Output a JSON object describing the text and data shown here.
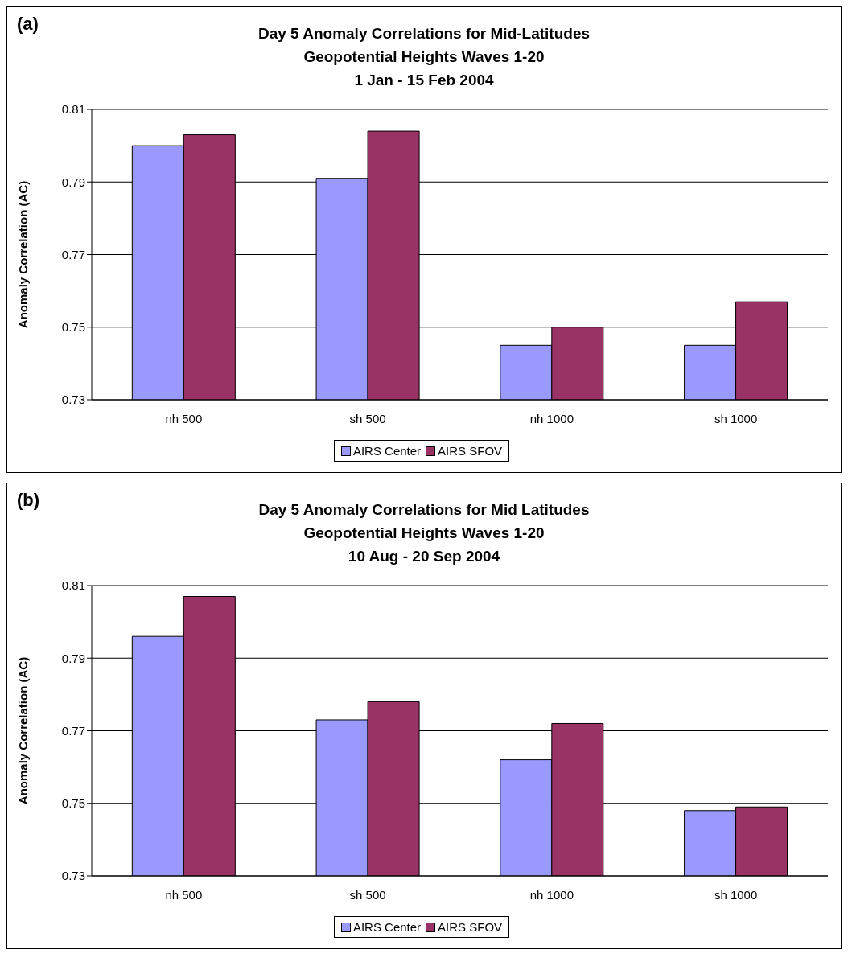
{
  "chart_data": [
    {
      "type": "bar",
      "title": "Day 5 Anomaly Correlations for Mid-Latitudes\nGeopotential Heights Waves 1-20\n1 Jan - 15 Feb 2004",
      "annotations": [
        "(a)"
      ],
      "ylabel": "Anomaly Correlation (AC)",
      "categories": [
        "nh 500",
        "sh 500",
        "nh 1000",
        "sh 1000"
      ],
      "series": [
        {
          "name": "AIRS Center",
          "color": "#9999ff",
          "values": [
            0.8,
            0.791,
            0.745,
            0.745
          ]
        },
        {
          "name": "AIRS SFOV",
          "color": "#993366",
          "values": [
            0.803,
            0.804,
            0.75,
            0.757
          ]
        }
      ],
      "ylim": [
        0.73,
        0.81
      ],
      "yticks": [
        0.73,
        0.75,
        0.77,
        0.79,
        0.81
      ],
      "grid": "y",
      "legend": "bottom"
    },
    {
      "type": "bar",
      "title": "Day 5 Anomaly Correlations for Mid Latitudes\nGeopotential Heights Waves 1-20\n10 Aug - 20 Sep 2004",
      "annotations": [
        "(b)"
      ],
      "ylabel": "Anomaly Correlation (AC)",
      "categories": [
        "nh 500",
        "sh 500",
        "nh 1000",
        "sh 1000"
      ],
      "series": [
        {
          "name": "AIRS Center",
          "color": "#9999ff",
          "values": [
            0.796,
            0.773,
            0.762,
            0.748
          ]
        },
        {
          "name": "AIRS SFOV",
          "color": "#993366",
          "values": [
            0.807,
            0.778,
            0.772,
            0.749
          ]
        }
      ],
      "ylim": [
        0.73,
        0.81
      ],
      "yticks": [
        0.73,
        0.75,
        0.77,
        0.79,
        0.81
      ],
      "grid": "y",
      "legend": "bottom"
    }
  ]
}
